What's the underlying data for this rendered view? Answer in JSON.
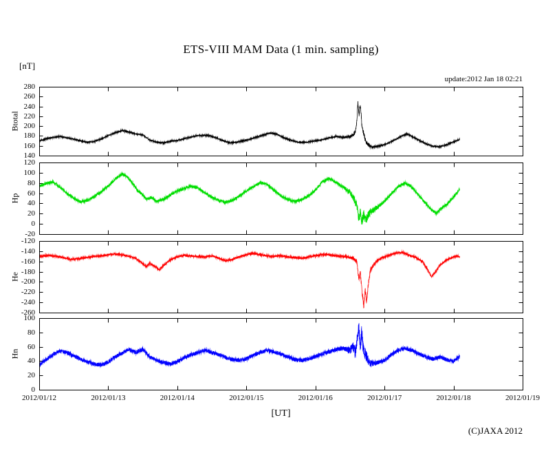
{
  "title": "ETS-VIII MAM Data (1 min. sampling)",
  "unit_label": "[nT]",
  "update_label": "update:2012 Jan 18 02:21",
  "xaxis_label": "[UT]",
  "copyright": "(C)JAXA 2012",
  "chart_data": {
    "type": "line",
    "title": "ETS-VIII MAM Data (1 min. sampling)",
    "xlabel": "[UT]",
    "ylabel_unit": "[nT]",
    "x_tick_labels": [
      "2012/01/12",
      "2012/01/13",
      "2012/01/14",
      "2012/01/15",
      "2012/01/16",
      "2012/01/17",
      "2012/01/18",
      "2012/01/19"
    ],
    "x_range_days": [
      0,
      7
    ],
    "data_start_day": 0,
    "data_end_day": 6.09,
    "grid": false,
    "legend": "none",
    "panels": [
      {
        "name": "Btotal",
        "color": "#000000",
        "ylim": [
          140,
          280
        ],
        "yticks": [
          280,
          260,
          240,
          220,
          200,
          180,
          160,
          140
        ],
        "noise_amp": 1.3,
        "storm": {
          "center": 4.66,
          "width": 0.16,
          "factor": 3
        },
        "keypoints": [
          [
            0,
            170
          ],
          [
            0.15,
            176
          ],
          [
            0.3,
            179
          ],
          [
            0.45,
            175
          ],
          [
            0.6,
            170
          ],
          [
            0.7,
            167
          ],
          [
            0.8,
            169
          ],
          [
            0.9,
            174
          ],
          [
            1.0,
            181
          ],
          [
            1.1,
            186
          ],
          [
            1.2,
            191
          ],
          [
            1.3,
            188
          ],
          [
            1.4,
            184
          ],
          [
            1.5,
            182
          ],
          [
            1.6,
            172
          ],
          [
            1.7,
            167
          ],
          [
            1.8,
            166
          ],
          [
            1.9,
            169
          ],
          [
            2.0,
            171
          ],
          [
            2.15,
            176
          ],
          [
            2.3,
            181
          ],
          [
            2.45,
            181
          ],
          [
            2.55,
            177
          ],
          [
            2.65,
            171
          ],
          [
            2.75,
            166
          ],
          [
            2.85,
            167
          ],
          [
            2.95,
            170
          ],
          [
            3.05,
            173
          ],
          [
            3.2,
            180
          ],
          [
            3.35,
            186
          ],
          [
            3.45,
            183
          ],
          [
            3.55,
            176
          ],
          [
            3.65,
            171
          ],
          [
            3.75,
            167
          ],
          [
            3.85,
            167
          ],
          [
            3.95,
            169
          ],
          [
            4.05,
            171
          ],
          [
            4.2,
            176
          ],
          [
            4.3,
            179
          ],
          [
            4.4,
            177
          ],
          [
            4.5,
            179
          ],
          [
            4.55,
            182
          ],
          [
            4.58,
            190
          ],
          [
            4.6,
            212
          ],
          [
            4.615,
            248
          ],
          [
            4.63,
            222
          ],
          [
            4.645,
            240
          ],
          [
            4.66,
            228
          ],
          [
            4.67,
            205
          ],
          [
            4.69,
            190
          ],
          [
            4.72,
            172
          ],
          [
            4.76,
            162
          ],
          [
            4.82,
            157
          ],
          [
            4.9,
            159
          ],
          [
            4.97,
            161
          ],
          [
            5.05,
            165
          ],
          [
            5.15,
            172
          ],
          [
            5.25,
            180
          ],
          [
            5.33,
            184
          ],
          [
            5.4,
            179
          ],
          [
            5.5,
            171
          ],
          [
            5.6,
            164
          ],
          [
            5.7,
            159
          ],
          [
            5.8,
            158
          ],
          [
            5.9,
            162
          ],
          [
            6.0,
            168
          ],
          [
            6.09,
            173
          ]
        ]
      },
      {
        "name": "Hp",
        "color": "#00dd00",
        "ylim": [
          -20,
          120
        ],
        "yticks": [
          120,
          100,
          80,
          60,
          40,
          20,
          0,
          -20
        ],
        "noise_amp": 2.8,
        "storm": {
          "center": 4.68,
          "width": 0.18,
          "factor": 2.5
        },
        "keypoints": [
          [
            0,
            73
          ],
          [
            0.1,
            79
          ],
          [
            0.2,
            82
          ],
          [
            0.3,
            72
          ],
          [
            0.4,
            60
          ],
          [
            0.5,
            50
          ],
          [
            0.6,
            43
          ],
          [
            0.7,
            46
          ],
          [
            0.8,
            54
          ],
          [
            0.9,
            63
          ],
          [
            1.0,
            74
          ],
          [
            1.1,
            88
          ],
          [
            1.2,
            97
          ],
          [
            1.28,
            92
          ],
          [
            1.35,
            80
          ],
          [
            1.42,
            66
          ],
          [
            1.5,
            57
          ],
          [
            1.55,
            48
          ],
          [
            1.62,
            52
          ],
          [
            1.7,
            44
          ],
          [
            1.8,
            48
          ],
          [
            1.9,
            57
          ],
          [
            2.0,
            64
          ],
          [
            2.1,
            69
          ],
          [
            2.2,
            74
          ],
          [
            2.3,
            70
          ],
          [
            2.4,
            61
          ],
          [
            2.5,
            52
          ],
          [
            2.6,
            46
          ],
          [
            2.7,
            42
          ],
          [
            2.8,
            46
          ],
          [
            2.9,
            55
          ],
          [
            3.0,
            64
          ],
          [
            3.1,
            73
          ],
          [
            3.2,
            81
          ],
          [
            3.3,
            77
          ],
          [
            3.4,
            66
          ],
          [
            3.5,
            55
          ],
          [
            3.6,
            48
          ],
          [
            3.7,
            44
          ],
          [
            3.8,
            47
          ],
          [
            3.9,
            55
          ],
          [
            4.0,
            66
          ],
          [
            4.1,
            82
          ],
          [
            4.2,
            89
          ],
          [
            4.3,
            81
          ],
          [
            4.4,
            72
          ],
          [
            4.5,
            62
          ],
          [
            4.55,
            52
          ],
          [
            4.6,
            35
          ],
          [
            4.63,
            8
          ],
          [
            4.65,
            25
          ],
          [
            4.67,
            3
          ],
          [
            4.7,
            18
          ],
          [
            4.73,
            5
          ],
          [
            4.76,
            15
          ],
          [
            4.8,
            24
          ],
          [
            4.9,
            33
          ],
          [
            5.0,
            44
          ],
          [
            5.1,
            59
          ],
          [
            5.2,
            73
          ],
          [
            5.3,
            80
          ],
          [
            5.38,
            74
          ],
          [
            5.5,
            55
          ],
          [
            5.6,
            40
          ],
          [
            5.68,
            27
          ],
          [
            5.75,
            21
          ],
          [
            5.82,
            30
          ],
          [
            5.9,
            38
          ],
          [
            6.0,
            52
          ],
          [
            6.09,
            68
          ]
        ]
      },
      {
        "name": "He",
        "color": "#ff0000",
        "ylim": [
          -260,
          -120
        ],
        "yticks": [
          -120,
          -140,
          -160,
          -180,
          -200,
          -220,
          -240,
          -260
        ],
        "noise_amp": 1.8,
        "storm": {
          "center": 4.7,
          "width": 0.15,
          "factor": 2.2
        },
        "keypoints": [
          [
            0,
            -150
          ],
          [
            0.15,
            -148
          ],
          [
            0.3,
            -151
          ],
          [
            0.45,
            -156
          ],
          [
            0.6,
            -154
          ],
          [
            0.75,
            -151
          ],
          [
            0.9,
            -149
          ],
          [
            1.0,
            -147
          ],
          [
            1.1,
            -145
          ],
          [
            1.2,
            -147
          ],
          [
            1.3,
            -150
          ],
          [
            1.4,
            -154
          ],
          [
            1.48,
            -162
          ],
          [
            1.55,
            -170
          ],
          [
            1.6,
            -164
          ],
          [
            1.68,
            -170
          ],
          [
            1.74,
            -176
          ],
          [
            1.8,
            -168
          ],
          [
            1.9,
            -157
          ],
          [
            2.0,
            -151
          ],
          [
            2.1,
            -148
          ],
          [
            2.25,
            -150
          ],
          [
            2.4,
            -151
          ],
          [
            2.5,
            -149
          ],
          [
            2.6,
            -154
          ],
          [
            2.7,
            -159
          ],
          [
            2.8,
            -156
          ],
          [
            2.9,
            -151
          ],
          [
            3.0,
            -147
          ],
          [
            3.1,
            -144
          ],
          [
            3.2,
            -147
          ],
          [
            3.35,
            -150
          ],
          [
            3.5,
            -149
          ],
          [
            3.65,
            -152
          ],
          [
            3.8,
            -154
          ],
          [
            3.9,
            -151
          ],
          [
            4.0,
            -149
          ],
          [
            4.15,
            -146
          ],
          [
            4.3,
            -149
          ],
          [
            4.45,
            -151
          ],
          [
            4.55,
            -154
          ],
          [
            4.6,
            -162
          ],
          [
            4.63,
            -196
          ],
          [
            4.65,
            -182
          ],
          [
            4.68,
            -225
          ],
          [
            4.7,
            -248
          ],
          [
            4.72,
            -215
          ],
          [
            4.74,
            -238
          ],
          [
            4.77,
            -200
          ],
          [
            4.8,
            -175
          ],
          [
            4.88,
            -160
          ],
          [
            4.96,
            -153
          ],
          [
            5.05,
            -149
          ],
          [
            5.15,
            -144
          ],
          [
            5.25,
            -142
          ],
          [
            5.35,
            -147
          ],
          [
            5.45,
            -152
          ],
          [
            5.55,
            -160
          ],
          [
            5.62,
            -175
          ],
          [
            5.68,
            -190
          ],
          [
            5.73,
            -182
          ],
          [
            5.8,
            -168
          ],
          [
            5.9,
            -157
          ],
          [
            6.0,
            -151
          ],
          [
            6.09,
            -150
          ]
        ]
      },
      {
        "name": "Hn",
        "color": "#0000ff",
        "ylim": [
          0,
          100
        ],
        "yticks": [
          100,
          80,
          60,
          40,
          20,
          0
        ],
        "noise_amp": 2.8,
        "storm": {
          "center": 4.65,
          "width": 0.14,
          "factor": 2.5
        },
        "keypoints": [
          [
            0,
            35
          ],
          [
            0.1,
            42
          ],
          [
            0.2,
            49
          ],
          [
            0.3,
            54
          ],
          [
            0.4,
            52
          ],
          [
            0.5,
            47
          ],
          [
            0.6,
            43
          ],
          [
            0.7,
            39
          ],
          [
            0.8,
            36
          ],
          [
            0.9,
            34
          ],
          [
            1.0,
            39
          ],
          [
            1.1,
            46
          ],
          [
            1.2,
            51
          ],
          [
            1.3,
            56
          ],
          [
            1.4,
            52
          ],
          [
            1.5,
            57
          ],
          [
            1.6,
            46
          ],
          [
            1.7,
            41
          ],
          [
            1.8,
            38
          ],
          [
            1.9,
            36
          ],
          [
            2.0,
            39
          ],
          [
            2.1,
            45
          ],
          [
            2.2,
            49
          ],
          [
            2.3,
            52
          ],
          [
            2.4,
            55
          ],
          [
            2.5,
            52
          ],
          [
            2.6,
            49
          ],
          [
            2.7,
            45
          ],
          [
            2.8,
            42
          ],
          [
            2.9,
            41
          ],
          [
            3.0,
            43
          ],
          [
            3.1,
            48
          ],
          [
            3.2,
            52
          ],
          [
            3.3,
            55
          ],
          [
            3.4,
            53
          ],
          [
            3.5,
            50
          ],
          [
            3.6,
            46
          ],
          [
            3.7,
            42
          ],
          [
            3.8,
            41
          ],
          [
            3.9,
            43
          ],
          [
            4.0,
            46
          ],
          [
            4.1,
            50
          ],
          [
            4.2,
            53
          ],
          [
            4.3,
            56
          ],
          [
            4.4,
            58
          ],
          [
            4.5,
            55
          ],
          [
            4.55,
            60
          ],
          [
            4.58,
            52
          ],
          [
            4.61,
            75
          ],
          [
            4.63,
            86
          ],
          [
            4.65,
            58
          ],
          [
            4.67,
            82
          ],
          [
            4.69,
            60
          ],
          [
            4.72,
            50
          ],
          [
            4.76,
            42
          ],
          [
            4.8,
            36
          ],
          [
            4.9,
            38
          ],
          [
            5.0,
            41
          ],
          [
            5.1,
            49
          ],
          [
            5.2,
            55
          ],
          [
            5.3,
            58
          ],
          [
            5.4,
            55
          ],
          [
            5.5,
            50
          ],
          [
            5.6,
            46
          ],
          [
            5.7,
            43
          ],
          [
            5.8,
            46
          ],
          [
            5.9,
            42
          ],
          [
            6.0,
            40
          ],
          [
            6.09,
            46
          ]
        ]
      }
    ]
  }
}
